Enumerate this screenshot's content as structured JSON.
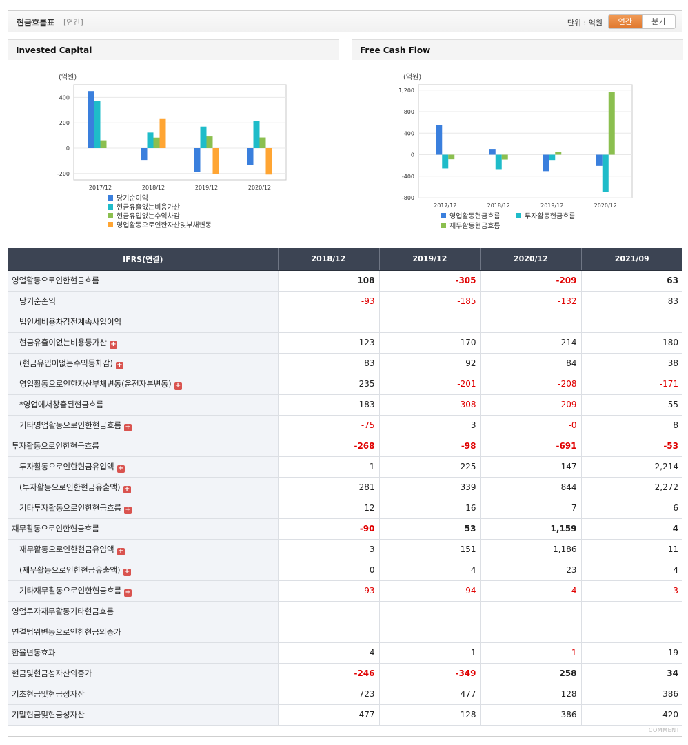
{
  "header": {
    "title": "현금흐름표",
    "subtitle": "[연간]",
    "unit": "단위 : 억원",
    "tabs": [
      "연간",
      "분기"
    ],
    "active_tab": 0
  },
  "colors": {
    "blue": "#3a7fdd",
    "teal": "#1fbcc9",
    "green": "#8bbf4f",
    "orange": "#ffa533"
  },
  "chart_data": [
    {
      "type": "bar",
      "title": "Invested Capital",
      "ylabel": "(억원)",
      "categories": [
        "2017/12",
        "2018/12",
        "2019/12",
        "2020/12"
      ],
      "ylim": [
        -250,
        500
      ],
      "yticks": [
        -200,
        0,
        200,
        400
      ],
      "yticklabels": [
        "-200",
        "0",
        "200",
        "400"
      ],
      "grid": true,
      "legend": "bottom",
      "series": [
        {
          "name": "당기순이익",
          "color": "#3a7fdd",
          "values": [
            450,
            -93,
            -185,
            -132
          ]
        },
        {
          "name": "현금유출없는비용가산",
          "color": "#1fbcc9",
          "values": [
            375,
            123,
            170,
            214
          ]
        },
        {
          "name": "현금유입없는수익차감",
          "color": "#8bbf4f",
          "values": [
            62,
            83,
            92,
            84
          ]
        },
        {
          "name": "영업활동으로인한자산및부채변동",
          "color": "#ffa533",
          "values": [
            0,
            235,
            -201,
            -208
          ]
        }
      ]
    },
    {
      "type": "bar",
      "title": "Free Cash Flow",
      "ylabel": "(억원)",
      "categories": [
        "2017/12",
        "2018/12",
        "2019/12",
        "2020/12"
      ],
      "ylim": [
        -800,
        1300
      ],
      "yticks": [
        -800,
        -400,
        0,
        400,
        800,
        1200
      ],
      "yticklabels": [
        "-800",
        "-400",
        "0",
        "400",
        "800",
        "1,200"
      ],
      "grid": true,
      "legend": "bottom",
      "series": [
        {
          "name": "영업활동현금흐름",
          "color": "#3a7fdd",
          "values": [
            555,
            108,
            -305,
            -209
          ]
        },
        {
          "name": "투자활동현금흐름",
          "color": "#1fbcc9",
          "values": [
            -255,
            -268,
            -98,
            -691
          ]
        },
        {
          "name": "재무활동현금흐름",
          "color": "#8bbf4f",
          "values": [
            -85,
            -90,
            53,
            1159
          ]
        }
      ]
    }
  ],
  "table": {
    "header_label": "IFRS(연결)",
    "periods": [
      "2018/12",
      "2019/12",
      "2020/12",
      "2021/09"
    ],
    "rows": [
      {
        "label": "영업활동으로인한현금흐름",
        "level": 0,
        "plus": false,
        "values": [
          "108",
          "-305",
          "-209",
          "63"
        ]
      },
      {
        "label": "당기순손익",
        "level": 1,
        "plus": false,
        "values": [
          "-93",
          "-185",
          "-132",
          "83"
        ]
      },
      {
        "label": "법인세비용차감전계속사업이익",
        "level": 1,
        "plus": false,
        "values": [
          "",
          "",
          "",
          ""
        ]
      },
      {
        "label": "현금유출이없는비용등가산",
        "level": 1,
        "plus": true,
        "values": [
          "123",
          "170",
          "214",
          "180"
        ]
      },
      {
        "label": "(현금유입이없는수익등차감)",
        "level": 1,
        "plus": true,
        "values": [
          "83",
          "92",
          "84",
          "38"
        ]
      },
      {
        "label": "영업활동으로인한자산부채변동(운전자본변동)",
        "level": 1,
        "plus": true,
        "values": [
          "235",
          "-201",
          "-208",
          "-171"
        ]
      },
      {
        "label": "*영업에서창출된현금흐름",
        "level": 1,
        "plus": false,
        "values": [
          "183",
          "-308",
          "-209",
          "55"
        ]
      },
      {
        "label": "기타영업활동으로인한현금흐름",
        "level": 1,
        "plus": true,
        "values": [
          "-75",
          "3",
          "-0",
          "8"
        ]
      },
      {
        "label": "투자활동으로인한현금흐름",
        "level": 0,
        "plus": false,
        "values": [
          "-268",
          "-98",
          "-691",
          "-53"
        ]
      },
      {
        "label": "투자활동으로인한현금유입액",
        "level": 1,
        "plus": true,
        "values": [
          "1",
          "225",
          "147",
          "2,214"
        ]
      },
      {
        "label": "(투자활동으로인한현금유출액)",
        "level": 1,
        "plus": true,
        "values": [
          "281",
          "339",
          "844",
          "2,272"
        ]
      },
      {
        "label": "기타투자활동으로인한현금흐름",
        "level": 1,
        "plus": true,
        "values": [
          "12",
          "16",
          "7",
          "6"
        ]
      },
      {
        "label": "재무활동으로인한현금흐름",
        "level": 0,
        "plus": false,
        "values": [
          "-90",
          "53",
          "1,159",
          "4"
        ]
      },
      {
        "label": "재무활동으로인한현금유입액",
        "level": 1,
        "plus": true,
        "values": [
          "3",
          "151",
          "1,186",
          "11"
        ]
      },
      {
        "label": "(재무활동으로인한현금유출액)",
        "level": 1,
        "plus": true,
        "values": [
          "0",
          "4",
          "23",
          "4"
        ]
      },
      {
        "label": "기타재무활동으로인한현금흐름",
        "level": 1,
        "plus": true,
        "values": [
          "-93",
          "-94",
          "-4",
          "-3"
        ]
      },
      {
        "label": "영업투자재무활동기타현금흐름",
        "level": 2,
        "plus": false,
        "values": [
          "",
          "",
          "",
          ""
        ]
      },
      {
        "label": "연결범위변동으로인한현금의증가",
        "level": 2,
        "plus": false,
        "values": [
          "",
          "",
          "",
          ""
        ]
      },
      {
        "label": "환율변동효과",
        "level": 2,
        "plus": false,
        "values": [
          "4",
          "1",
          "-1",
          "19"
        ]
      },
      {
        "label": "현금및현금성자산의증가",
        "level": 0,
        "plus": false,
        "values": [
          "-246",
          "-349",
          "258",
          "34"
        ]
      },
      {
        "label": "기초현금및현금성자산",
        "level": 2,
        "plus": false,
        "values": [
          "723",
          "477",
          "128",
          "386"
        ]
      },
      {
        "label": "기말현금및현금성자산",
        "level": 2,
        "plus": false,
        "values": [
          "477",
          "128",
          "386",
          "420"
        ]
      }
    ]
  },
  "footer": {
    "comment": "COMMENT"
  }
}
